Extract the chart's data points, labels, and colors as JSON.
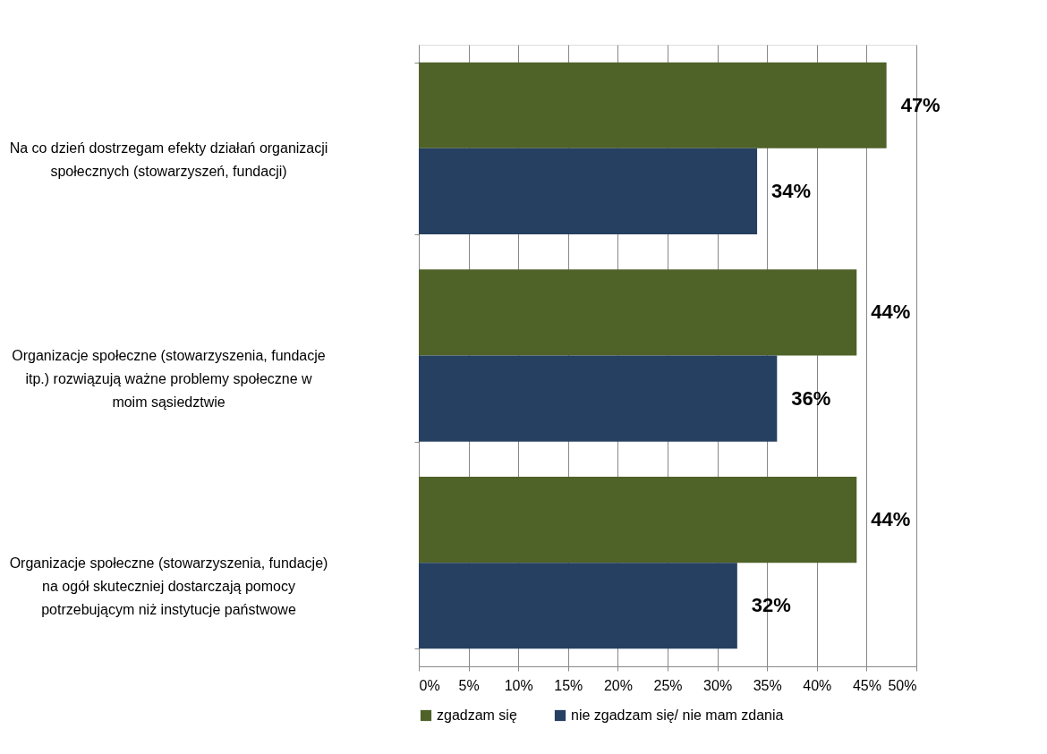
{
  "chart_data": {
    "type": "bar",
    "orientation": "horizontal",
    "categories": [
      "Na co dzień dostrzegam efekty działań organizacji\nspołecznych (stowarzyszeń, fundacji)",
      "Organizacje społeczne (stowarzyszenia, fundacje\nitp.) rozwiązują ważne problemy społeczne w\nmoim sąsiedztwie",
      "Organizacje społeczne (stowarzyszenia, fundacje)\nna ogół skuteczniej dostarczają pomocy\npotrzebującym niż instytucje państwowe"
    ],
    "series": [
      {
        "name": "zgadzam się",
        "color": "#4f6228",
        "values": [
          47,
          44,
          44
        ],
        "value_labels": [
          "47%",
          "44%",
          "44%"
        ]
      },
      {
        "name": "nie zgadzam się/ nie mam zdania",
        "color": "#254061",
        "values": [
          34,
          36,
          32
        ],
        "value_labels": [
          "34%",
          "36%",
          "32%"
        ]
      }
    ],
    "xlim": [
      0,
      50
    ],
    "xticks": [
      {
        "value": 0,
        "label": "0%"
      },
      {
        "value": 5,
        "label": "5%"
      },
      {
        "value": 10,
        "label": "10%"
      },
      {
        "value": 15,
        "label": "15%"
      },
      {
        "value": 20,
        "label": "20%"
      },
      {
        "value": 25,
        "label": "25%"
      },
      {
        "value": 30,
        "label": "30%"
      },
      {
        "value": 35,
        "label": "35%"
      },
      {
        "value": 40,
        "label": "40%"
      },
      {
        "value": 45,
        "label": "45%"
      },
      {
        "value": 50,
        "label": "50%"
      }
    ],
    "grid": "x",
    "legend": "bottom"
  }
}
